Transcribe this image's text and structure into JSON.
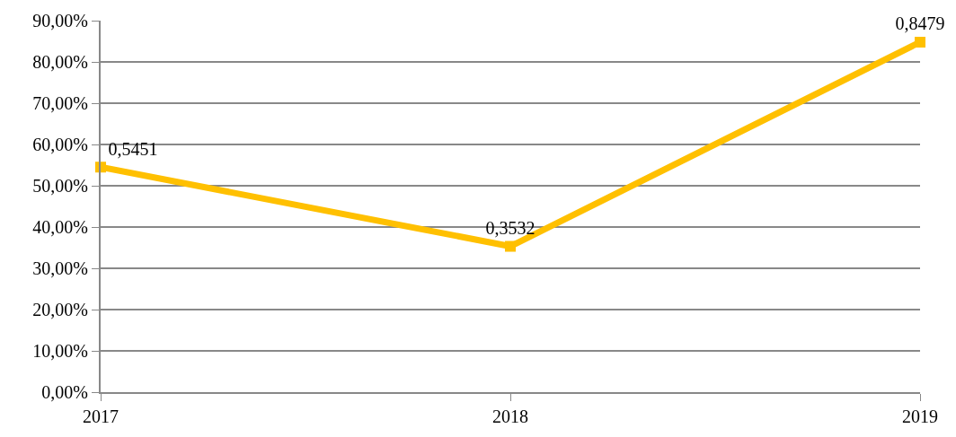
{
  "chart_data": {
    "type": "line",
    "categories": [
      "2017",
      "2018",
      "2019"
    ],
    "series": [
      {
        "color": "#ffc000",
        "values": [
          0.5451,
          0.3532,
          0.8479
        ],
        "value_labels": [
          "0,5451",
          "0,3532",
          "0,8479"
        ]
      }
    ],
    "ylim": [
      0,
      0.9
    ],
    "yticks": [
      {
        "value": 0,
        "label": "0,00%"
      },
      {
        "value": 0.1,
        "label": "10,00%"
      },
      {
        "value": 0.2,
        "label": "20,00%"
      },
      {
        "value": 0.3,
        "label": "30,00%"
      },
      {
        "value": 0.4,
        "label": "40,00%"
      },
      {
        "value": 0.5,
        "label": "50,00%"
      },
      {
        "value": 0.6,
        "label": "60,00%"
      },
      {
        "value": 0.7,
        "label": "70,00%"
      },
      {
        "value": 0.8,
        "label": "80,00%"
      },
      {
        "value": 0.9,
        "label": "90,00%"
      }
    ],
    "grid": "y",
    "marker": "square",
    "line_style": "solid",
    "legend": false
  }
}
